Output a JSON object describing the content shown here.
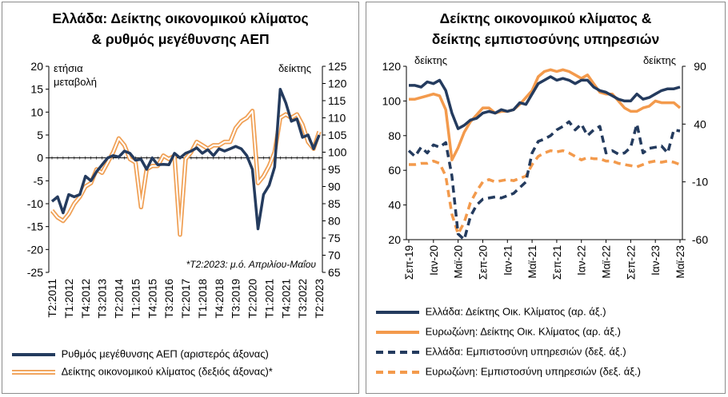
{
  "left": {
    "title_line1": "Ελλάδα: Δείκτης οικονομικού κλίματος",
    "title_line2": "& ρυθμός μεγέθυνσης ΑΕΠ",
    "axis_label_left_line1": "ετήσια",
    "axis_label_left_line2": "μεταβολή",
    "axis_label_right": "δείκτης",
    "note": "*Τ2:2023: μ.ό. Απριλίου-Μαΐου",
    "legend": [
      {
        "label": "Ρυθμός μεγέθυνσης ΑΕΠ (αριστερός άξονας)",
        "color": "#243b5e"
      },
      {
        "label": "Δείκτης οικονομικού κλίματος (δεξιός άξονας)*",
        "color": "#f0a055"
      }
    ]
  },
  "right": {
    "title_line1": "Δείκτης οικονομικού κλίματος &",
    "title_line2": "δείκτης εμπιστοσύνης υπηρεσιών",
    "axis_label_left": "δείκτης",
    "axis_label_right": "δείκτης",
    "legend": [
      {
        "label": "Ελλάδα: Δείκτης Οικ. Κλίματος (αρ. άξ.)",
        "color": "#243b5e",
        "style": "solid"
      },
      {
        "label": "Ευρωζώνη: Δείκτης Οικ. Κλίματος (αρ. άξ.)",
        "color": "#f39a4c",
        "style": "solid"
      },
      {
        "label": "Ελλάδα: Εμπιστοσύνη υπηρεσιών (δεξ. άξ.)",
        "color": "#243b5e",
        "style": "dashed"
      },
      {
        "label": "Ευρωζώνη: Εμπιστοσύνη υπηρεσιών (δεξ. άξ.)",
        "color": "#f39a4c",
        "style": "dashed"
      }
    ]
  },
  "chart_data": [
    {
      "type": "line",
      "title": "Ελλάδα: Δείκτης οικονομικού κλίματος & ρυθμός μεγέθυνσης ΑΕΠ",
      "x": [
        "Τ2:2011",
        "Τ3:2011",
        "Τ4:2011",
        "Τ1:2012",
        "Τ2:2012",
        "Τ3:2012",
        "Τ4:2012",
        "Τ1:2013",
        "Τ2:2013",
        "Τ3:2013",
        "Τ4:2013",
        "Τ1:2014",
        "Τ2:2014",
        "Τ3:2014",
        "Τ4:2014",
        "Τ1:2015",
        "Τ2:2015",
        "Τ3:2015",
        "Τ4:2015",
        "Τ1:2016",
        "Τ2:2016",
        "Τ3:2016",
        "Τ4:2016",
        "Τ1:2017",
        "Τ2:2017",
        "Τ3:2017",
        "Τ4:2017",
        "Τ1:2018",
        "Τ2:2018",
        "Τ3:2018",
        "Τ4:2018",
        "Τ1:2019",
        "Τ2:2019",
        "Τ3:2019",
        "Τ4:2019",
        "Τ1:2020",
        "Τ2:2020",
        "Τ3:2020",
        "Τ4:2020",
        "Τ1:2021",
        "Τ2:2021",
        "Τ3:2021",
        "Τ4:2021",
        "Τ1:2022",
        "Τ2:2022",
        "Τ3:2022",
        "Τ4:2022",
        "Τ1:2023",
        "Τ2:2023"
      ],
      "x_tick_labels": [
        "Τ2:2011",
        "Τ1:2012",
        "Τ4:2012",
        "Τ3:2013",
        "Τ2:2014",
        "Τ1:2015",
        "Τ4:2015",
        "Τ3:2016",
        "Τ2:2017",
        "Τ1:2018",
        "Τ4:2018",
        "Τ3:2019",
        "Τ2:2020",
        "Τ1:2021",
        "Τ4:2021",
        "Τ3:2022",
        "Τ2:2023"
      ],
      "y_left": {
        "min": -25,
        "max": 20,
        "ticks": [
          -25,
          -20,
          -15,
          -10,
          -5,
          0,
          5,
          10,
          15,
          20
        ]
      },
      "y_right": {
        "min": 65,
        "max": 125,
        "ticks": [
          65,
          70,
          75,
          80,
          85,
          90,
          95,
          100,
          105,
          110,
          115,
          120,
          125
        ]
      },
      "series": [
        {
          "name": "Ρυθμός μεγέθυνσης ΑΕΠ (αριστερός άξονας)",
          "axis": "left",
          "values": [
            -9.5,
            -8.5,
            -12,
            -8,
            -8.5,
            -8,
            -4,
            -5,
            -3,
            -1.5,
            0,
            0.5,
            0.2,
            1.5,
            1,
            -0.5,
            -0.3,
            -2.5,
            0,
            -1.5,
            -1.4,
            -1.5,
            1,
            0,
            1,
            1.5,
            2.2,
            1,
            1.8,
            0.5,
            2,
            1.5,
            2,
            2.5,
            2,
            0.5,
            -2.5,
            -15.5,
            -8,
            -6,
            -2,
            15,
            12,
            8,
            8.5,
            4.5,
            5,
            2,
            5
          ]
        },
        {
          "name": "Δείκτης οικονομικού κλίματος (δεξιός άξονας)*",
          "axis": "right",
          "values": [
            83,
            81,
            80,
            82,
            85,
            87,
            90,
            91,
            95,
            94,
            97,
            100,
            104,
            102,
            98,
            97,
            84,
            95,
            96,
            96,
            99,
            98,
            99,
            76,
            98,
            100,
            103,
            102,
            101,
            102,
            102,
            103,
            103,
            107,
            109,
            110,
            112,
            91,
            93,
            96,
            100,
            110,
            111,
            110,
            111,
            108,
            103,
            101,
            106
          ]
        }
      ]
    },
    {
      "type": "line",
      "title": "Δείκτης οικονομικού κλίματος & δείκτης εμπιστοσύνης υπηρεσιών",
      "x_tick_labels": [
        "Σεπ-19",
        "Ιαν-20",
        "Μαϊ-20",
        "Σεπ-20",
        "Ιαν-21",
        "Μαϊ-21",
        "Σεπ-21",
        "Ιαν-22",
        "Μαϊ-22",
        "Σεπ-22",
        "Ιαν-23",
        "Μαϊ-23"
      ],
      "x_count": 45,
      "y_left": {
        "min": 20,
        "max": 120,
        "ticks": [
          20,
          40,
          60,
          80,
          100,
          120
        ]
      },
      "y_right": {
        "min": -60,
        "max": 90,
        "ticks": [
          -60,
          -10,
          40,
          90
        ]
      },
      "series": [
        {
          "name": "Ελλάδα: Δείκτης Οικ. Κλίματος (αρ. άξ.)",
          "axis": "left",
          "style": "solid",
          "values": [
            109,
            109,
            108,
            111,
            110,
            112,
            106,
            93,
            84,
            86,
            89,
            90,
            93,
            94,
            93,
            95,
            94,
            95,
            99,
            98,
            104,
            110,
            112,
            114,
            112,
            113,
            112,
            110,
            112,
            112,
            108,
            106,
            105,
            103,
            101,
            100,
            100,
            104,
            101,
            102,
            104,
            106,
            107,
            107,
            108
          ]
        },
        {
          "name": "Ευρωζώνη: Δείκτης Οικ. Κλίματος (αρ. άξ.)",
          "axis": "left",
          "style": "solid",
          "values": [
            101,
            101,
            102,
            103,
            104,
            103,
            95,
            66,
            73,
            82,
            88,
            92,
            96,
            96,
            93,
            94,
            94,
            95,
            98,
            102,
            106,
            114,
            117,
            118,
            117,
            118,
            117,
            115,
            113,
            115,
            110,
            105,
            104,
            104,
            100,
            96,
            94,
            94,
            96,
            97,
            100,
            99,
            99,
            99,
            96
          ]
        },
        {
          "name": "Ελλάδα: Εμπιστοσύνη υπηρεσιών (δεξ. άξ.)",
          "axis": "right",
          "style": "dashed",
          "values": [
            17,
            12,
            20,
            15,
            22,
            20,
            24,
            -5,
            -55,
            -60,
            -40,
            -30,
            -25,
            -24,
            -23,
            -24,
            -22,
            -20,
            -15,
            -10,
            15,
            25,
            27,
            30,
            35,
            38,
            42,
            35,
            40,
            30,
            35,
            38,
            15,
            17,
            14,
            15,
            20,
            40,
            15,
            19,
            20,
            21,
            15,
            35,
            34
          ]
        },
        {
          "name": "Ευρωζώνη: Εμπιστοσύνη υπηρεσιών (δεξ. άξ.)",
          "axis": "right",
          "style": "dashed",
          "values": [
            5,
            5,
            6,
            6,
            8,
            6,
            -5,
            -38,
            -55,
            -45,
            -28,
            -18,
            -10,
            -8,
            -10,
            -9,
            -8,
            -9,
            -7,
            -5,
            5,
            12,
            15,
            17,
            16,
            17,
            15,
            12,
            9,
            11,
            10,
            10,
            8,
            8,
            6,
            5,
            4,
            3,
            5,
            7,
            8,
            7,
            8,
            7,
            5
          ]
        }
      ]
    }
  ]
}
